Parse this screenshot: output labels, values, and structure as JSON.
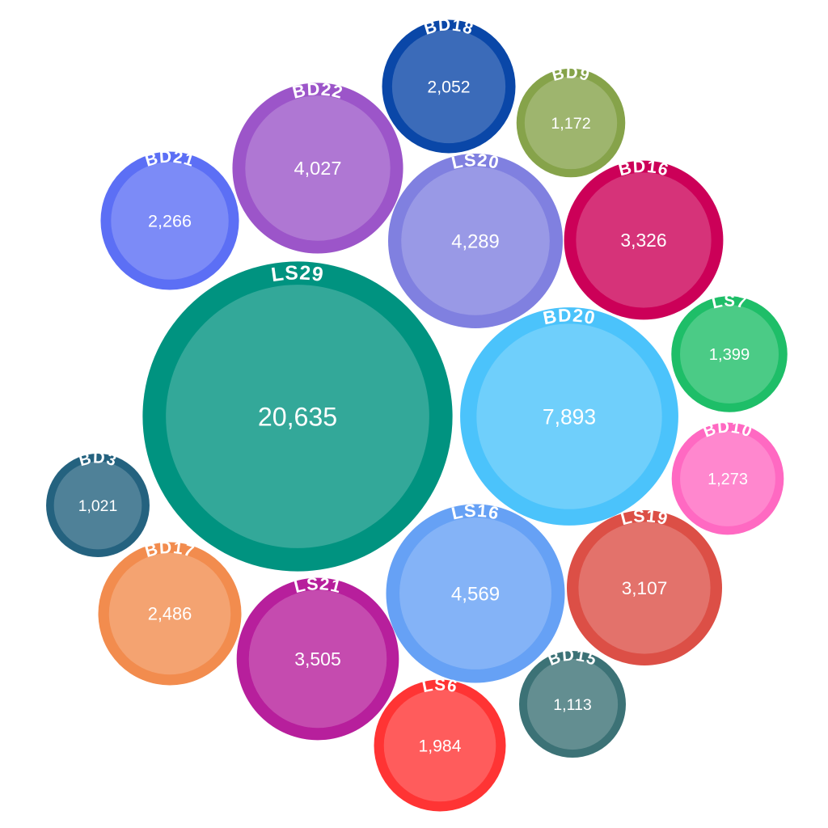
{
  "chart_data": {
    "type": "bubble",
    "categories": [
      "BD18",
      "BD9",
      "BD22",
      "BD21",
      "LS20",
      "BD16",
      "LS29",
      "BD20",
      "LS7",
      "BD10",
      "BD3",
      "BD17",
      "LS21",
      "LS16",
      "LS19",
      "BD15",
      "LS6"
    ],
    "values": [
      2052,
      1172,
      4027,
      2266,
      4289,
      3326,
      20635,
      7893,
      1399,
      1273,
      1021,
      2486,
      3505,
      4569,
      3107,
      1113,
      1984
    ],
    "value_labels": [
      "2,052",
      "1,172",
      "4,027",
      "2,266",
      "4,289",
      "3,326",
      "20,635",
      "7,893",
      "1,399",
      "1,273",
      "1,021",
      "2,486",
      "3,505",
      "4,569",
      "3,107",
      "1,113",
      "1,984"
    ],
    "colors": [
      "#0a47a8",
      "#86a34a",
      "#9c55c9",
      "#5c6ff5",
      "#8080e0",
      "#cc0058",
      "#009380",
      "#4bc3fb",
      "#1ebe68",
      "#ff69c2",
      "#24627f",
      "#f28c4e",
      "#b71f9c",
      "#66a1f5",
      "#dc4f46",
      "#3c7276",
      "#ff3434"
    ]
  }
}
